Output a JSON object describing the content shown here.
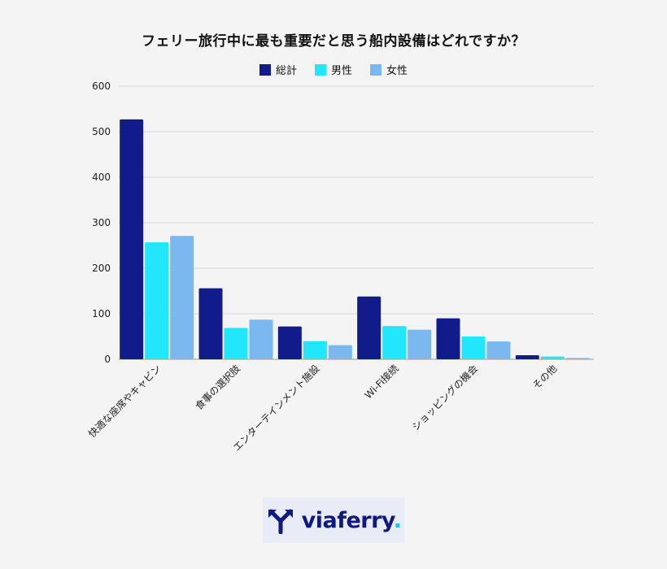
{
  "chart_data": {
    "type": "bar",
    "title": "フェリー旅行中に最も重要だと思う船内設備はどれですか？",
    "categories": [
      "快適な座席やキャビン",
      "食事の選択肢",
      "エンターテインメント施設",
      "Wi-Fi接続",
      "ショッピングの機会",
      "その他"
    ],
    "series": [
      {
        "name": "総計",
        "color": "#111c8a",
        "values": [
          527,
          156,
          72,
          138,
          90,
          9
        ]
      },
      {
        "name": "男性",
        "color": "#22e6fb",
        "values": [
          257,
          69,
          40,
          73,
          50,
          6
        ]
      },
      {
        "name": "女性",
        "color": "#7ab8ef",
        "values": [
          271,
          87,
          31,
          65,
          39,
          3
        ]
      }
    ],
    "ylim": [
      0,
      600
    ],
    "yticks": [
      0,
      100,
      200,
      300,
      400,
      500,
      600
    ],
    "xlabel": "",
    "ylabel": "",
    "grid": true,
    "legend_position": "top-center"
  },
  "logo": {
    "text": "viaferry",
    "dot": ".",
    "text_color": "#10197e",
    "dot_color": "#1fc7e0",
    "background": "#e7ecf7"
  }
}
